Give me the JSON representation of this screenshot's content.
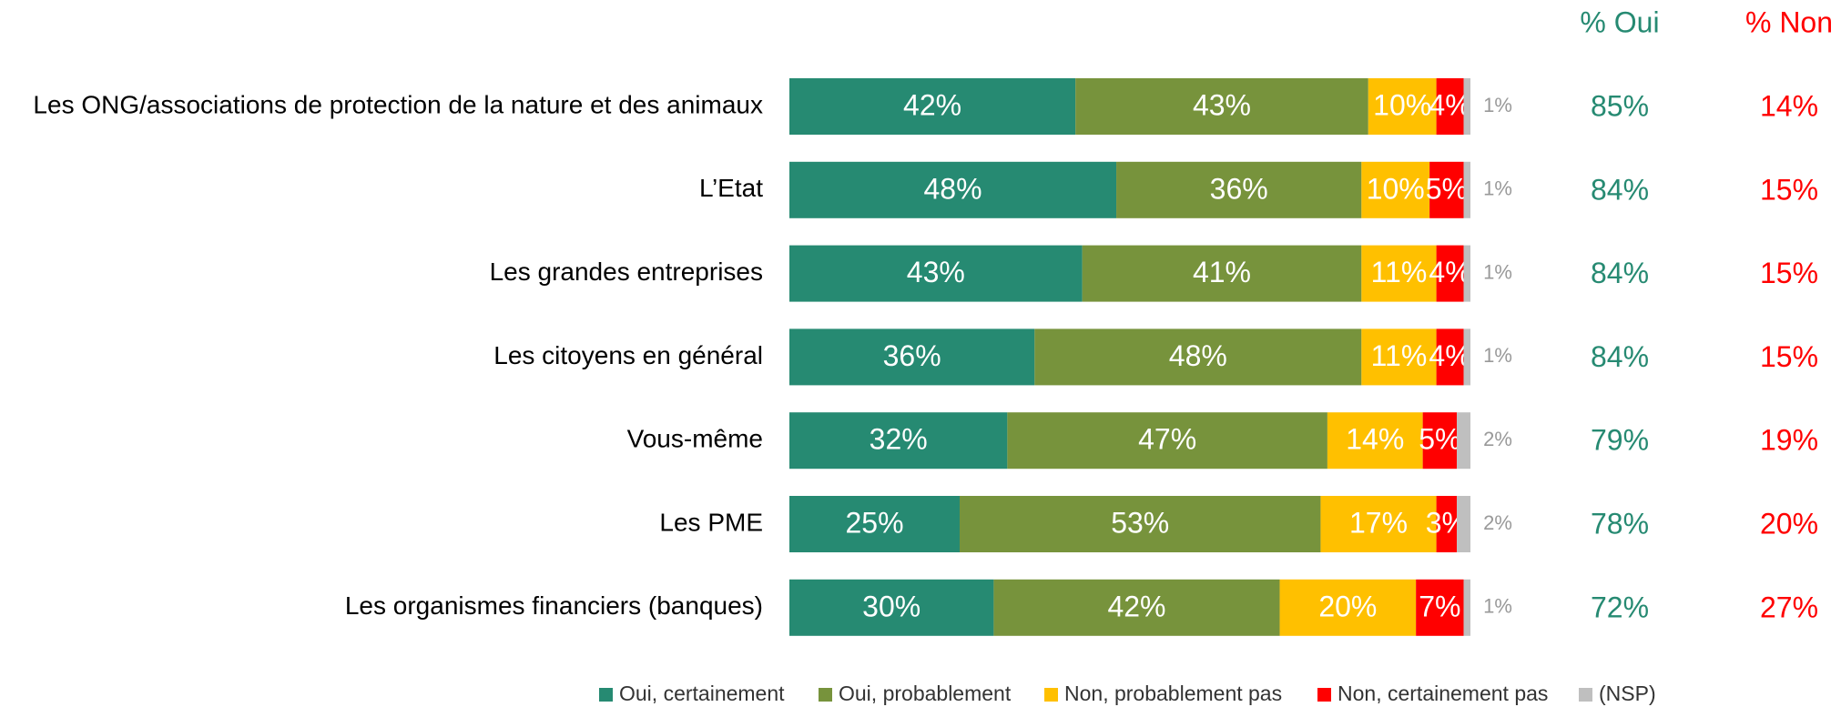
{
  "chart_data": {
    "type": "stacked-barh",
    "categories": [
      "Les ONG/associations de protection de la nature et des animaux",
      "L’Etat",
      "Les grandes entreprises",
      "Les citoyens en général",
      "Vous-même",
      "Les PME",
      "Les organismes financiers (banques)"
    ],
    "xlim": [
      0,
      100
    ],
    "series": [
      {
        "name": "Oui, certainement",
        "color": "#268a72",
        "values": [
          42,
          48,
          43,
          36,
          32,
          25,
          30
        ],
        "value_labels": [
          "42%",
          "48%",
          "43%",
          "36%",
          "32%",
          "25%",
          "30%"
        ]
      },
      {
        "name": "Oui, probablement",
        "color": "#77933c",
        "values": [
          43,
          36,
          41,
          48,
          47,
          53,
          42
        ],
        "value_labels": [
          "43%",
          "36%",
          "41%",
          "48%",
          "47%",
          "53%",
          "42%"
        ]
      },
      {
        "name": "Non, probablement pas",
        "color": "#ffc000",
        "values": [
          10,
          10,
          11,
          11,
          14,
          17,
          20
        ],
        "value_labels": [
          "10%",
          "10%",
          "11%",
          "11%",
          "14%",
          "17%",
          "20%"
        ]
      },
      {
        "name": "Non, certainement pas",
        "color": "#ff0000",
        "values": [
          4,
          5,
          4,
          4,
          5,
          3,
          7
        ],
        "value_labels": [
          "4%",
          "5%",
          "4%",
          "4%",
          "5%",
          "3%",
          "7%"
        ]
      },
      {
        "name": "(NSP)",
        "color": "#bfbfbf",
        "values": [
          1,
          1,
          1,
          1,
          2,
          2,
          1
        ],
        "value_labels": [
          "1%",
          "1%",
          "1%",
          "1%",
          "2%",
          "2%",
          "1%"
        ]
      }
    ],
    "totals": [
      {
        "name": "% Oui",
        "color": "#268a72",
        "values": [
          85,
          84,
          84,
          84,
          79,
          78,
          72
        ],
        "value_labels": [
          "85%",
          "84%",
          "84%",
          "84%",
          "79%",
          "78%",
          "72%"
        ]
      },
      {
        "name": "% Non",
        "color": "#ff0000",
        "values": [
          14,
          15,
          15,
          15,
          19,
          20,
          27
        ],
        "value_labels": [
          "14%",
          "15%",
          "15%",
          "15%",
          "19%",
          "20%",
          "27%"
        ]
      }
    ],
    "legend": "bottom"
  }
}
